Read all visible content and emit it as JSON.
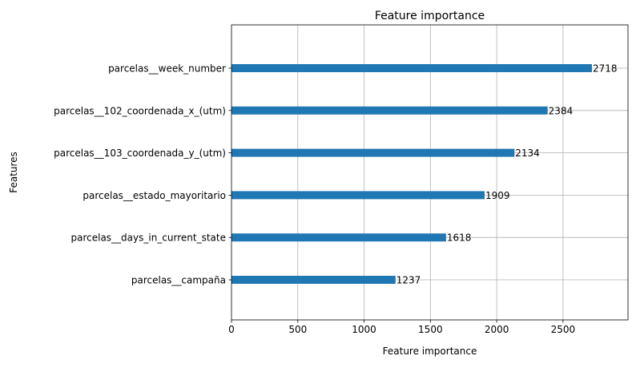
{
  "chart_data": {
    "type": "bar",
    "orientation": "horizontal",
    "title": "Feature importance",
    "xlabel": "Feature importance",
    "ylabel": "Features",
    "xlim": [
      0,
      2990
    ],
    "xticks": [
      0,
      500,
      1000,
      1500,
      2000,
      2500
    ],
    "grid": true,
    "data_labels": true,
    "bar_color": "#1f77b4",
    "categories": [
      "parcelas__week_number",
      "parcelas__102_coordenada_x_(utm)",
      "parcelas__103_coordenada_y_(utm)",
      "parcelas__estado_mayoritario",
      "parcelas__days_in_current_state",
      "parcelas__campaña"
    ],
    "values": [
      2718,
      2384,
      2134,
      1909,
      1618,
      1237
    ]
  }
}
